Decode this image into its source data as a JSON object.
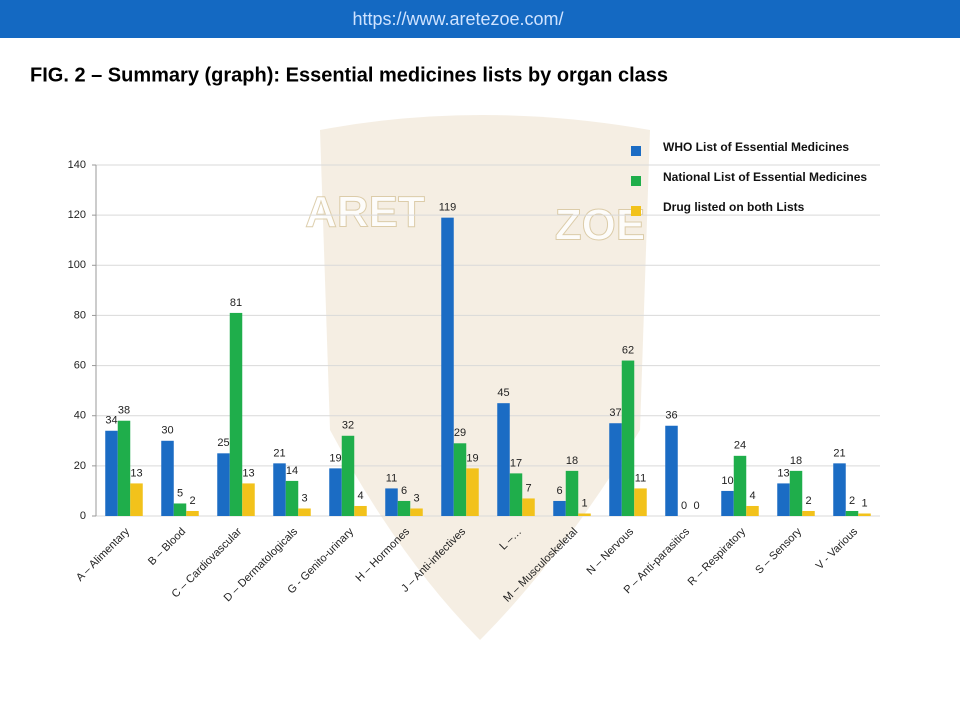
{
  "header": {
    "url": "https://www.aretezoe.com/"
  },
  "watermark": {
    "left": "ARET",
    "right": "ZOE"
  },
  "chart_data": {
    "type": "bar",
    "title": "FIG. 2 – Summary (graph): Essential medicines lists by organ class",
    "categories": [
      "A – Alimentary",
      "B – Blood",
      "C – Cardiovascular",
      "D – Dermatologicals",
      "G - Genito-urinary",
      "H – Hormones",
      "J – Anti-infectives",
      "L –…",
      "M – Musculoskeletal",
      "N – Nervous",
      "P – Anti-parasitics",
      "R – Respiratory",
      "S – Sensory",
      "V - Various"
    ],
    "series": [
      {
        "name": "WHO List of Essential Medicines",
        "color": "#1b6cc4",
        "values": [
          34,
          30,
          25,
          21,
          19,
          11,
          119,
          45,
          6,
          37,
          36,
          10,
          13,
          21
        ]
      },
      {
        "name": "National List of Essential Medicines",
        "color": "#1fae4b",
        "values": [
          38,
          5,
          81,
          14,
          32,
          6,
          29,
          17,
          18,
          62,
          0,
          24,
          18,
          2
        ]
      },
      {
        "name": "Drug listed on both Lists",
        "color": "#f2c21b",
        "values": [
          13,
          2,
          13,
          3,
          4,
          3,
          19,
          7,
          1,
          11,
          0,
          4,
          2,
          1
        ]
      }
    ],
    "ylim": [
      0,
      140
    ],
    "yticks": [
      0,
      20,
      40,
      60,
      80,
      100,
      120,
      140
    ],
    "grid": true,
    "legend": "top-right"
  }
}
